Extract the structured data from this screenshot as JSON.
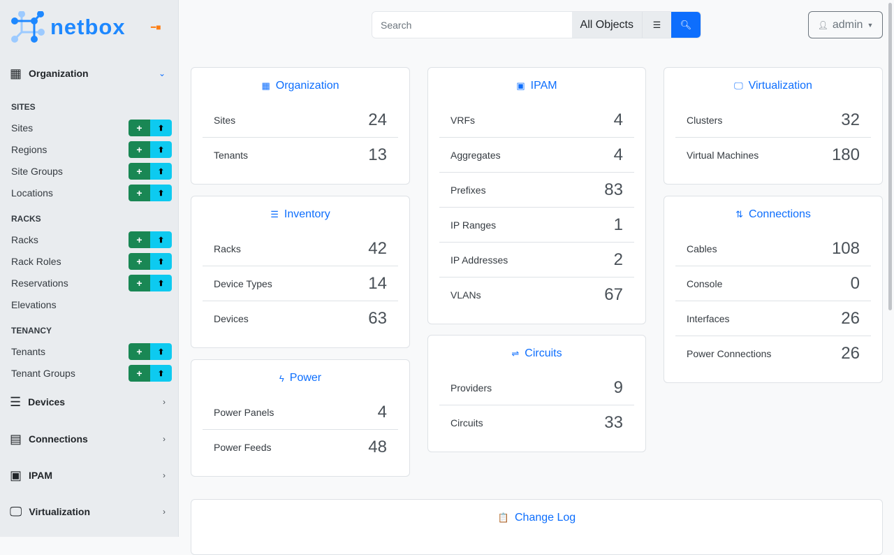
{
  "app": {
    "logo_text": "netbox"
  },
  "sidebar": {
    "sections": [
      {
        "label": "Organization",
        "icon": "building-icon",
        "expanded": true
      },
      {
        "label": "Devices",
        "icon": "server-icon"
      },
      {
        "label": "Connections",
        "icon": "ethernet-icon"
      },
      {
        "label": "IPAM",
        "icon": "ip-icon"
      },
      {
        "label": "Virtualization",
        "icon": "monitor-icon"
      }
    ],
    "groups": [
      {
        "heading": "SITES",
        "items": [
          {
            "label": "Sites",
            "buttons": true
          },
          {
            "label": "Regions",
            "buttons": true
          },
          {
            "label": "Site Groups",
            "buttons": true
          },
          {
            "label": "Locations",
            "buttons": true
          }
        ]
      },
      {
        "heading": "RACKS",
        "items": [
          {
            "label": "Racks",
            "buttons": true
          },
          {
            "label": "Rack Roles",
            "buttons": true
          },
          {
            "label": "Reservations",
            "buttons": true
          },
          {
            "label": "Elevations",
            "buttons": false
          }
        ]
      },
      {
        "heading": "TENANCY",
        "items": [
          {
            "label": "Tenants",
            "buttons": true
          },
          {
            "label": "Tenant Groups",
            "buttons": true
          }
        ]
      }
    ],
    "add_glyph": "+",
    "import_glyph": "⬆"
  },
  "header": {
    "search_placeholder": "Search",
    "search_scope": "All Objects",
    "user": "admin"
  },
  "colors": {
    "primary": "#0d6efd",
    "success": "#198754",
    "info": "#0dcaf0"
  },
  "cards": [
    {
      "title": "Organization",
      "icon": "▦",
      "rows": [
        [
          "Sites",
          "24"
        ],
        [
          "Tenants",
          "13"
        ]
      ]
    },
    {
      "title": "Inventory",
      "icon": "☰",
      "rows": [
        [
          "Racks",
          "42"
        ],
        [
          "Device Types",
          "14"
        ],
        [
          "Devices",
          "63"
        ]
      ]
    },
    {
      "title": "Power",
      "icon": "ϟ",
      "rows": [
        [
          "Power Panels",
          "4"
        ],
        [
          "Power Feeds",
          "48"
        ]
      ]
    },
    {
      "title": "IPAM",
      "icon": "▣",
      "rows": [
        [
          "VRFs",
          "4"
        ],
        [
          "Aggregates",
          "4"
        ],
        [
          "Prefixes",
          "83"
        ],
        [
          "IP Ranges",
          "1"
        ],
        [
          "IP Addresses",
          "2"
        ],
        [
          "VLANs",
          "67"
        ]
      ]
    },
    {
      "title": "Circuits",
      "icon": "⇌",
      "rows": [
        [
          "Providers",
          "9"
        ],
        [
          "Circuits",
          "33"
        ]
      ]
    },
    {
      "title": "Virtualization",
      "icon": "🖵",
      "rows": [
        [
          "Clusters",
          "32"
        ],
        [
          "Virtual Machines",
          "180"
        ]
      ]
    },
    {
      "title": "Connections",
      "icon": "⇅",
      "rows": [
        [
          "Cables",
          "108"
        ],
        [
          "Console",
          "0"
        ],
        [
          "Interfaces",
          "26"
        ],
        [
          "Power Connections",
          "26"
        ]
      ]
    },
    {
      "title": "Change Log",
      "icon": "📋",
      "rows": []
    }
  ]
}
